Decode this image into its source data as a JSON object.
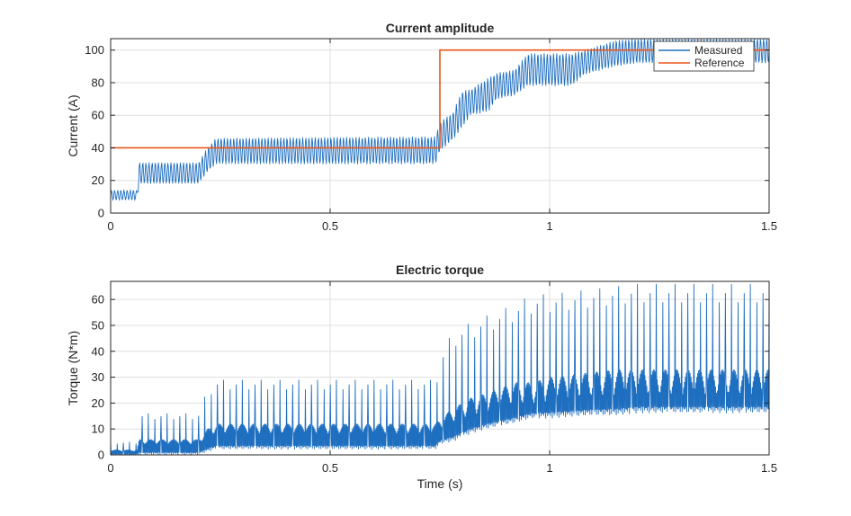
{
  "colors": {
    "measured": "#1f6fc0",
    "reference": "#e8561c",
    "grid": "#dfdfdf",
    "axes": "#262626"
  },
  "chart_data": [
    {
      "type": "line",
      "title": "Current amplitude",
      "xlabel": "",
      "ylabel": "Current (A)",
      "xlim": [
        0,
        1.5
      ],
      "ylim": [
        0,
        107
      ],
      "xticks": [
        0,
        0.5,
        1,
        1.5
      ],
      "xtick_labels": [
        "0",
        "0.5",
        "1",
        "1.5"
      ],
      "yticks": [
        0,
        20,
        40,
        60,
        80,
        100
      ],
      "ytick_labels": [
        "0",
        "20",
        "40",
        "60",
        "80",
        "100"
      ],
      "grid": true,
      "legend": {
        "placement": "top-right",
        "entries": [
          "Measured",
          "Reference"
        ]
      },
      "series": [
        {
          "name": "Measured",
          "style": "oscillating band",
          "envelope": {
            "x": [
              0,
              0.06,
              0.065,
              0.2,
              0.22,
              0.24,
              0.74,
              0.75,
              0.78,
              0.8,
              0.82,
              0.86,
              0.88,
              0.92,
              0.95,
              1.05,
              1.08,
              1.15,
              1.2,
              1.5
            ],
            "lower": [
              8,
              8,
              18,
              18,
              25,
              30,
              30,
              38,
              45,
              52,
              60,
              62,
              70,
              72,
              78,
              78,
              85,
              90,
              92,
              92
            ],
            "upper": [
              14,
              14,
              31,
              31,
              40,
              46,
              47,
              56,
              62,
              75,
              76,
              83,
              86,
              88,
              98,
              98,
              100,
              106,
              107,
              107
            ]
          }
        },
        {
          "name": "Reference",
          "x": [
            0,
            0.75,
            0.75,
            1.5
          ],
          "y": [
            40,
            40,
            100,
            100
          ]
        }
      ]
    },
    {
      "type": "line",
      "title": "Electric torque",
      "xlabel": "Time (s)",
      "ylabel": "Torque (N*m)",
      "xlim": [
        0,
        1.5
      ],
      "ylim": [
        0,
        67
      ],
      "xticks": [
        0,
        0.5,
        1,
        1.5
      ],
      "xtick_labels": [
        "0",
        "0.5",
        "1",
        "1.5"
      ],
      "yticks": [
        0,
        10,
        20,
        30,
        40,
        50,
        60
      ],
      "ytick_labels": [
        "0",
        "10",
        "20",
        "30",
        "40",
        "50",
        "60"
      ],
      "grid": true,
      "series": [
        {
          "name": "",
          "style": "spiky oscillation",
          "envelope": {
            "x": [
              0,
              0.06,
              0.065,
              0.2,
              0.22,
              0.24,
              0.74,
              0.75,
              0.78,
              0.82,
              0.86,
              0.92,
              0.96,
              1.0,
              1.1,
              1.15,
              1.2,
              1.5
            ],
            "lower": [
              0,
              0,
              0,
              0,
              1,
              2,
              2,
              4,
              5,
              8,
              10,
              12,
              14,
              14,
              15,
              15,
              16,
              16
            ],
            "body": [
              2,
              2,
              6,
              6,
              10,
              12,
              12,
              14,
              18,
              22,
              24,
              28,
              28,
              30,
              32,
              33,
              33,
              33
            ],
            "peak": [
              5,
              5,
              16,
              16,
              25,
              29,
              29,
              38,
              48,
              51,
              54,
              58,
              62,
              62,
              64,
              65,
              66,
              66
            ]
          }
        }
      ]
    }
  ]
}
